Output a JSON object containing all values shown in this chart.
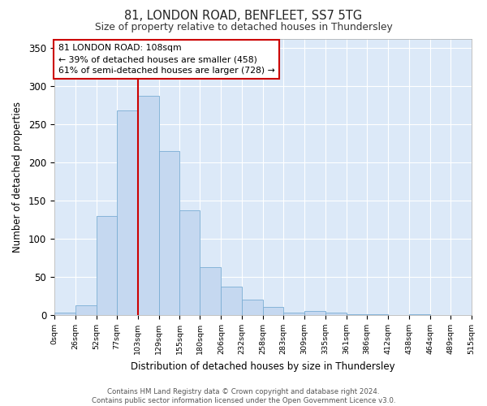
{
  "title": "81, LONDON ROAD, BENFLEET, SS7 5TG",
  "subtitle": "Size of property relative to detached houses in Thundersley",
  "xlabel": "Distribution of detached houses by size in Thundersley",
  "ylabel": "Number of detached properties",
  "bar_color": "#c5d8f0",
  "bar_edge_color": "#7aadd4",
  "background_color": "#dce9f8",
  "grid_color": "#ffffff",
  "fig_background": "#ffffff",
  "property_line_x": 103,
  "property_line_color": "#cc0000",
  "annotation_text": "81 LONDON ROAD: 108sqm\n← 39% of detached houses are smaller (458)\n61% of semi-detached houses are larger (728) →",
  "annotation_box_color": "#ffffff",
  "annotation_box_edge": "#cc0000",
  "footer_text": "Contains HM Land Registry data © Crown copyright and database right 2024.\nContains public sector information licensed under the Open Government Licence v3.0.",
  "bin_edges": [
    0,
    26,
    52,
    77,
    103,
    129,
    155,
    180,
    206,
    232,
    258,
    283,
    309,
    335,
    361,
    386,
    412,
    438,
    464,
    489,
    515
  ],
  "bin_labels": [
    "0sqm",
    "26sqm",
    "52sqm",
    "77sqm",
    "103sqm",
    "129sqm",
    "155sqm",
    "180sqm",
    "206sqm",
    "232sqm",
    "258sqm",
    "283sqm",
    "309sqm",
    "335sqm",
    "361sqm",
    "386sqm",
    "412sqm",
    "438sqm",
    "464sqm",
    "489sqm",
    "515sqm"
  ],
  "values": [
    3,
    13,
    130,
    268,
    287,
    215,
    137,
    63,
    37,
    20,
    11,
    3,
    5,
    3,
    1,
    1,
    0,
    1,
    0,
    0
  ],
  "ylim": [
    0,
    362
  ],
  "yticks": [
    0,
    50,
    100,
    150,
    200,
    250,
    300,
    350
  ]
}
